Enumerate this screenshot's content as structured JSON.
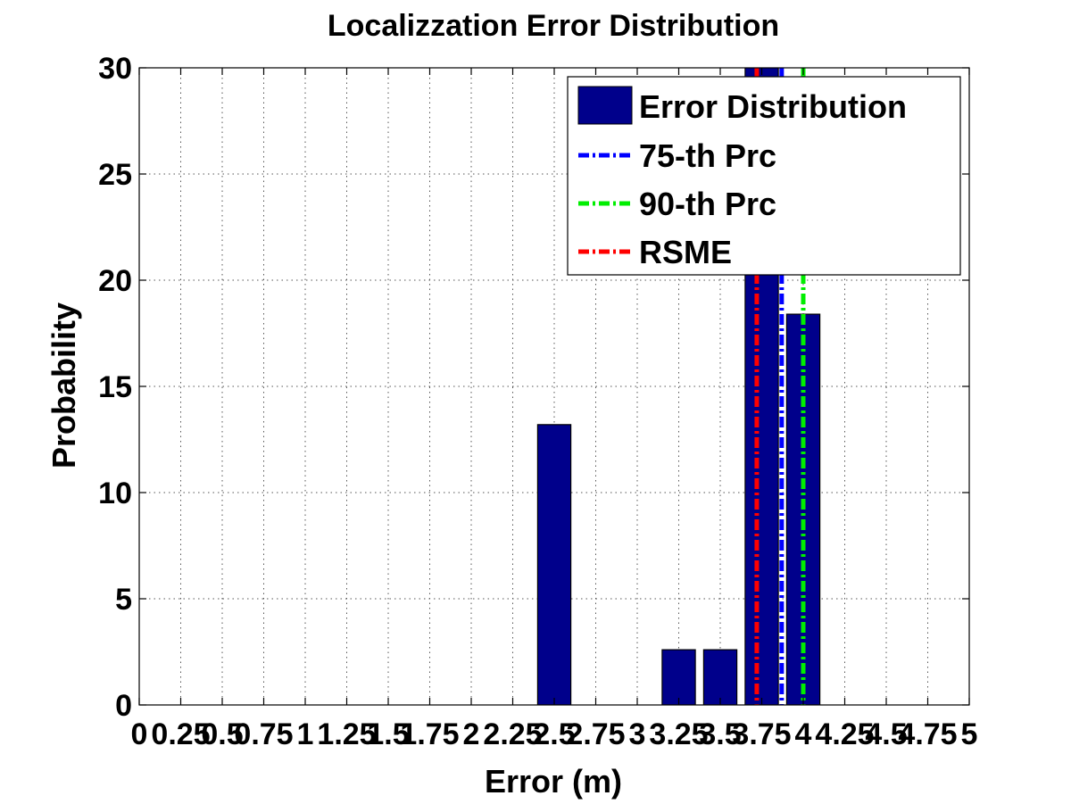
{
  "chart_data": {
    "type": "bar",
    "title": "Localizzation Error Distribution",
    "xlabel": "Error (m)",
    "ylabel": "Probability",
    "xlim": [
      0,
      5
    ],
    "ylim": [
      0,
      30
    ],
    "xticks": [
      0,
      0.25,
      0.5,
      0.75,
      1,
      1.25,
      1.5,
      1.75,
      2,
      2.25,
      2.5,
      2.75,
      3,
      3.25,
      3.5,
      3.75,
      4,
      4.25,
      4.5,
      4.75,
      5
    ],
    "xtick_labels": [
      "0",
      "0.25",
      "0.5",
      "0.75",
      "1",
      "1.25",
      "1.5",
      "1.75",
      "2",
      "2.25",
      "2.5",
      "2.75",
      "3",
      "3.25",
      "3.5",
      "3.75",
      "4",
      "4.25",
      "4.5",
      "4.75",
      "5"
    ],
    "yticks": [
      0,
      5,
      10,
      15,
      20,
      25,
      30
    ],
    "ytick_labels": [
      "0",
      "5",
      "10",
      "15",
      "20",
      "25",
      "30"
    ],
    "grid": true,
    "bar_width": 0.2,
    "bars": [
      {
        "x": 2.5,
        "value": 13.2
      },
      {
        "x": 3.25,
        "value": 2.6
      },
      {
        "x": 3.5,
        "value": 2.6
      },
      {
        "x": 3.75,
        "value": 31.6
      },
      {
        "x": 4.0,
        "value": 18.4
      }
    ],
    "vlines": [
      {
        "name": "75-th Prc",
        "x": 3.87,
        "color": "#0000ff"
      },
      {
        "name": "90-th Prc",
        "x": 4.0,
        "color": "#00ee00"
      },
      {
        "name": "RSME",
        "x": 3.72,
        "color": "#ff0000"
      }
    ],
    "bar_series_name": "Error Distribution",
    "bar_color": "#00008b",
    "legend_position": "top-right"
  }
}
